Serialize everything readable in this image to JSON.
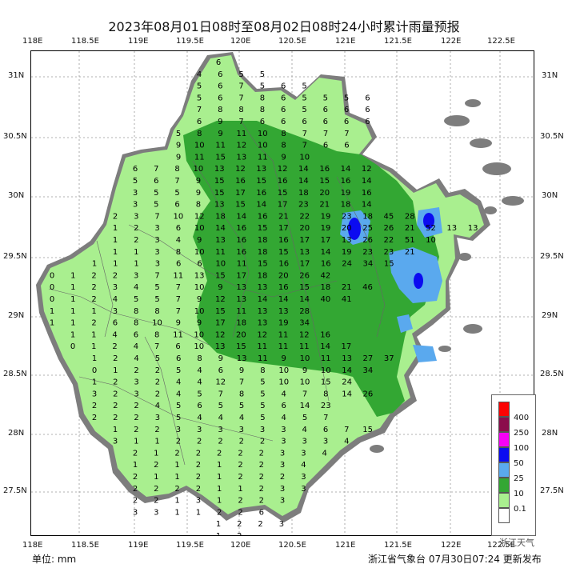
{
  "title": "2023年08月01日08时至08月02日08时24小时累计雨量预报",
  "axes": {
    "top_lon": [
      "118E",
      "118.5E",
      "119E",
      "119.5E",
      "120E",
      "120.5E",
      "121E",
      "121.5E",
      "122E",
      "122.5E"
    ],
    "bottom_lon": [
      "118E",
      "118.5E",
      "119E",
      "119.5E",
      "120E",
      "120.5E",
      "121E",
      "121.5E",
      "122E",
      "122.5E"
    ],
    "left_lat": [
      "31N",
      "30.5N",
      "30N",
      "29.5N",
      "29N",
      "28.5N",
      "28N",
      "27.5N"
    ],
    "right_lat": [
      "31N",
      "30.5N",
      "30N",
      "29.5N",
      "29N",
      "28.5N",
      "28N",
      "27.5N"
    ]
  },
  "legend": {
    "levels": [
      "400",
      "250",
      "100",
      "50",
      "25",
      "10",
      "0.1"
    ],
    "colors": [
      "#fb0303",
      "#8b0d4c",
      "#f700f7",
      "#0b0bf0",
      "#5aa9ee",
      "#33a733",
      "#a9ef8f",
      "#ffffff"
    ]
  },
  "unit": "单位:  mm",
  "issuer": "浙江省气象台  07月30日07:24  更新发布",
  "watermark": "浙江天气",
  "grid_values": [
    {
      "row": 0,
      "vals": [
        "6"
      ]
    },
    {
      "row": 1,
      "vals": [
        "4",
        "6",
        "5",
        "5"
      ]
    },
    {
      "row": 2,
      "vals": [
        "5",
        "6",
        "7",
        "5",
        "6",
        "5"
      ]
    },
    {
      "row": 3,
      "vals": [
        "5",
        "6",
        "7",
        "8",
        "6",
        "5",
        "5",
        "5",
        "6"
      ]
    },
    {
      "row": 4,
      "vals": [
        "7",
        "8",
        "8",
        "8",
        "6",
        "5",
        "6",
        "6",
        "6"
      ]
    },
    {
      "row": 5,
      "vals": [
        "6",
        "9",
        "7",
        "6",
        "6",
        "6",
        "6",
        "6",
        "6"
      ]
    },
    {
      "row": 6,
      "vals": [
        "5",
        "8",
        "9",
        "11",
        "10",
        "8",
        "7",
        "7",
        "7"
      ]
    },
    {
      "row": 7,
      "vals": [
        "9",
        "10",
        "11",
        "12",
        "10",
        "8",
        "7",
        "6",
        "6"
      ]
    },
    {
      "row": 8,
      "vals": [
        "9",
        "11",
        "15",
        "13",
        "11",
        "9",
        "10"
      ]
    },
    {
      "row": 9,
      "vals": [
        "6",
        "7",
        "8",
        "10",
        "13",
        "12",
        "13",
        "12",
        "14",
        "16",
        "14",
        "12"
      ]
    },
    {
      "row": 10,
      "vals": [
        "5",
        "6",
        "7",
        "9",
        "15",
        "16",
        "15",
        "16",
        "14",
        "15",
        "16",
        "14"
      ]
    },
    {
      "row": 11,
      "vals": [
        "3",
        "5",
        "5",
        "9",
        "15",
        "17",
        "16",
        "15",
        "18",
        "20",
        "19",
        "16"
      ]
    },
    {
      "row": 12,
      "vals": [
        "3",
        "5",
        "6",
        "8",
        "13",
        "15",
        "14",
        "17",
        "23",
        "21",
        "18",
        "14"
      ]
    },
    {
      "row": 13,
      "vals": [
        "2",
        "3",
        "7",
        "10",
        "12",
        "18",
        "14",
        "16",
        "21",
        "22",
        "19",
        "23",
        "18",
        "45",
        "28"
      ]
    },
    {
      "row": 14,
      "vals": [
        "1",
        "2",
        "3",
        "6",
        "10",
        "14",
        "16",
        "15",
        "17",
        "20",
        "19",
        "20",
        "25",
        "26",
        "21",
        "52",
        "13",
        "13"
      ]
    },
    {
      "row": 15,
      "vals": [
        "1",
        "2",
        "3",
        "4",
        "9",
        "13",
        "16",
        "18",
        "16",
        "17",
        "17",
        "13",
        "26",
        "22",
        "51",
        "10"
      ]
    },
    {
      "row": 16,
      "vals": [
        "1",
        "1",
        "3",
        "8",
        "10",
        "11",
        "16",
        "18",
        "15",
        "13",
        "14",
        "19",
        "23",
        "23",
        "21"
      ]
    },
    {
      "row": 17,
      "vals": [
        "1",
        "1",
        "1",
        "3",
        "6",
        "6",
        "10",
        "11",
        "15",
        "16",
        "17",
        "16",
        "24",
        "34",
        "15"
      ]
    },
    {
      "row": 18,
      "vals": [
        "0",
        "1",
        "2",
        "2",
        "3",
        "7",
        "11",
        "13",
        "15",
        "17",
        "18",
        "20",
        "26",
        "42"
      ]
    },
    {
      "row": 19,
      "vals": [
        "0",
        "1",
        "2",
        "3",
        "4",
        "5",
        "7",
        "10",
        "9",
        "13",
        "13",
        "16",
        "15",
        "18",
        "21",
        "46"
      ]
    },
    {
      "row": 20,
      "vals": [
        "0",
        "1",
        "2",
        "4",
        "5",
        "5",
        "7",
        "9",
        "12",
        "13",
        "14",
        "14",
        "14",
        "40",
        "41"
      ]
    },
    {
      "row": 21,
      "vals": [
        "1",
        "1",
        "1",
        "3",
        "8",
        "8",
        "7",
        "10",
        "15",
        "11",
        "13",
        "13",
        "28"
      ]
    },
    {
      "row": 22,
      "vals": [
        "1",
        "1",
        "2",
        "6",
        "8",
        "10",
        "9",
        "9",
        "17",
        "18",
        "13",
        "19",
        "34"
      ]
    },
    {
      "row": 23,
      "vals": [
        "1",
        "1",
        "4",
        "6",
        "8",
        "11",
        "10",
        "12",
        "20",
        "12",
        "11",
        "12",
        "16"
      ]
    },
    {
      "row": 24,
      "vals": [
        "0",
        "1",
        "2",
        "4",
        "7",
        "6",
        "10",
        "13",
        "15",
        "11",
        "11",
        "11",
        "14",
        "17"
      ]
    },
    {
      "row": 25,
      "vals": [
        "1",
        "2",
        "4",
        "5",
        "6",
        "8",
        "9",
        "13",
        "11",
        "9",
        "10",
        "11",
        "13",
        "27",
        "37"
      ]
    },
    {
      "row": 26,
      "vals": [
        "0",
        "1",
        "2",
        "2",
        "5",
        "4",
        "6",
        "9",
        "8",
        "10",
        "9",
        "10",
        "14",
        "34"
      ]
    },
    {
      "row": 27,
      "vals": [
        "1",
        "2",
        "3",
        "2",
        "4",
        "4",
        "12",
        "7",
        "5",
        "10",
        "10",
        "15",
        "24"
      ]
    },
    {
      "row": 28,
      "vals": [
        "3",
        "2",
        "3",
        "2",
        "4",
        "5",
        "7",
        "8",
        "5",
        "4",
        "7",
        "8",
        "14",
        "26"
      ]
    },
    {
      "row": 29,
      "vals": [
        "2",
        "2",
        "2",
        "4",
        "5",
        "6",
        "5",
        "5",
        "5",
        "6",
        "14",
        "23"
      ]
    },
    {
      "row": 30,
      "vals": [
        "2",
        "2",
        "2",
        "3",
        "5",
        "4",
        "4",
        "4",
        "5",
        "4",
        "5",
        "7"
      ]
    },
    {
      "row": 31,
      "vals": [
        "1",
        "2",
        "2",
        "3",
        "3",
        "3",
        "3",
        "3",
        "3",
        "4",
        "6",
        "7",
        "15"
      ]
    },
    {
      "row": 32,
      "vals": [
        "3",
        "1",
        "1",
        "2",
        "2",
        "2",
        "2",
        "2",
        "3",
        "3",
        "3",
        "4"
      ]
    },
    {
      "row": 33,
      "vals": [
        "2",
        "1",
        "2",
        "2",
        "2",
        "2",
        "2",
        "3",
        "3",
        "4"
      ]
    },
    {
      "row": 34,
      "vals": [
        "1",
        "2",
        "1",
        "2",
        "1",
        "2",
        "2",
        "3",
        "4"
      ]
    },
    {
      "row": 35,
      "vals": [
        "2",
        "1",
        "1",
        "2",
        "1",
        "2",
        "2",
        "2",
        "3"
      ]
    },
    {
      "row": 36,
      "vals": [
        "2",
        "2",
        "2",
        "2",
        "1",
        "1",
        "2",
        "3",
        "3"
      ]
    },
    {
      "row": 37,
      "vals": [
        "2",
        "2",
        "1",
        "3",
        "1",
        "2",
        "2",
        "3"
      ]
    },
    {
      "row": 38,
      "vals": [
        "3",
        "3",
        "1",
        "1",
        "2",
        "2",
        "6"
      ]
    },
    {
      "row": 39,
      "vals": [
        "1",
        "2",
        "2",
        "3"
      ]
    },
    {
      "row": 40,
      "vals": [
        "1",
        "2"
      ]
    }
  ]
}
